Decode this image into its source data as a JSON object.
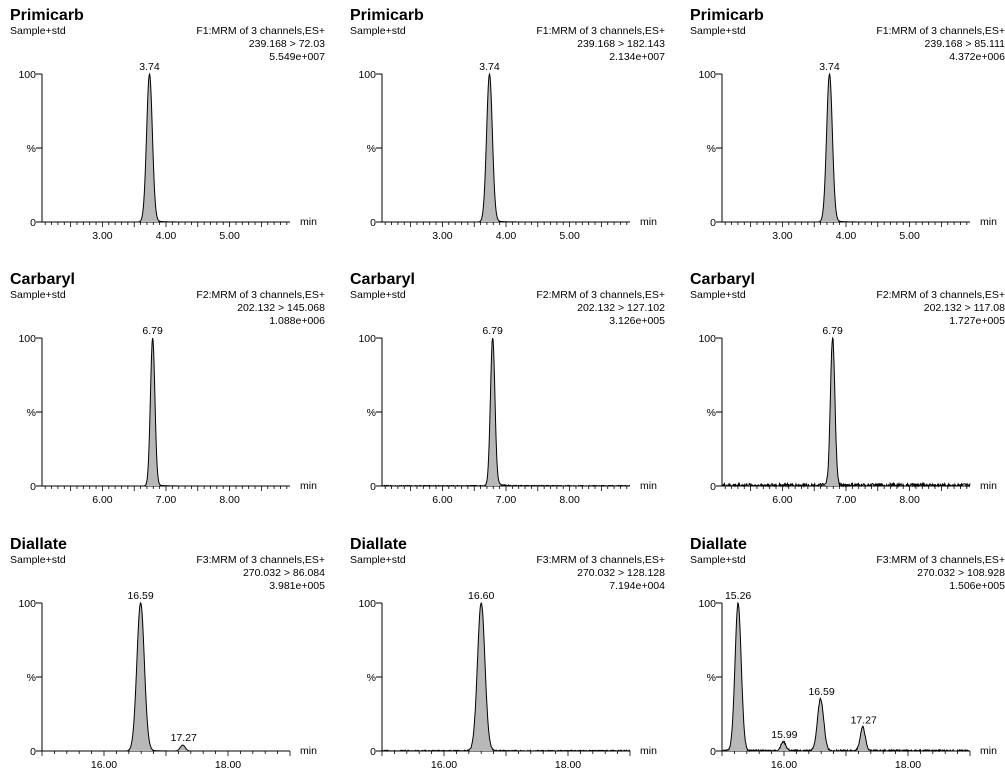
{
  "chart_data": [
    {
      "type": "line",
      "title": "Primicarb",
      "subtitle": "Sample+std",
      "function": "F1:MRM of 3 channels,ES+",
      "transition": "239.168 > 72.03",
      "intensity": "5.549e+007",
      "xlabel": "min",
      "xlim": [
        2.05,
        5.95
      ],
      "ylim": [
        0,
        100
      ],
      "x_ticks": [
        "3.00",
        "4.00",
        "5.00"
      ],
      "y_ticks": [
        "0",
        "%",
        "100"
      ],
      "peaks": [
        {
          "label": "3.74",
          "rt": 3.74,
          "height": 100,
          "width": 0.045
        }
      ],
      "tail": 1.5,
      "noise": 0
    },
    {
      "type": "line",
      "title": "Primicarb",
      "subtitle": "Sample+std",
      "function": "F1:MRM of 3 channels,ES+",
      "transition": "239.168 > 182.143",
      "intensity": "2.134e+007",
      "xlabel": "min",
      "xlim": [
        2.05,
        5.95
      ],
      "ylim": [
        0,
        100
      ],
      "x_ticks": [
        "3.00",
        "4.00",
        "5.00"
      ],
      "y_ticks": [
        "0",
        "%",
        "100"
      ],
      "peaks": [
        {
          "label": "3.74",
          "rt": 3.74,
          "height": 100,
          "width": 0.045
        }
      ],
      "tail": 1.5,
      "noise": 0
    },
    {
      "type": "line",
      "title": "Primicarb",
      "subtitle": "Sample+std",
      "function": "F1:MRM of 3 channels,ES+",
      "transition": "239.168 > 85.111",
      "intensity": "4.372e+006",
      "xlabel": "min",
      "xlim": [
        2.05,
        5.95
      ],
      "ylim": [
        0,
        100
      ],
      "x_ticks": [
        "3.00",
        "4.00",
        "5.00"
      ],
      "y_ticks": [
        "0",
        "%",
        "100"
      ],
      "peaks": [
        {
          "label": "3.74",
          "rt": 3.74,
          "height": 100,
          "width": 0.045
        }
      ],
      "tail": 1.5,
      "noise": 0
    },
    {
      "type": "line",
      "title": "Carbaryl",
      "subtitle": "Sample+std",
      "function": "F2:MRM of 3 channels,ES+",
      "transition": "202.132 > 145.068",
      "intensity": "1.088e+006",
      "xlabel": "min",
      "xlim": [
        5.05,
        8.95
      ],
      "ylim": [
        0,
        100
      ],
      "x_ticks": [
        "6.00",
        "7.00",
        "8.00"
      ],
      "y_ticks": [
        "0",
        "%",
        "100"
      ],
      "peaks": [
        {
          "label": "6.79",
          "rt": 6.79,
          "height": 100,
          "width": 0.035
        }
      ],
      "tail": 1.2,
      "noise": 0
    },
    {
      "type": "line",
      "title": "Carbaryl",
      "subtitle": "Sample+std",
      "function": "F2:MRM of 3 channels,ES+",
      "transition": "202.132 > 127.102",
      "intensity": "3.126e+005",
      "xlabel": "min",
      "xlim": [
        5.05,
        8.95
      ],
      "ylim": [
        0,
        100
      ],
      "x_ticks": [
        "6.00",
        "7.00",
        "8.00"
      ],
      "y_ticks": [
        "0",
        "%",
        "100"
      ],
      "peaks": [
        {
          "label": "6.79",
          "rt": 6.79,
          "height": 100,
          "width": 0.035
        }
      ],
      "tail": 2.5,
      "noise": 0.6
    },
    {
      "type": "line",
      "title": "Carbaryl",
      "subtitle": "Sample+std",
      "function": "F2:MRM of 3 channels,ES+",
      "transition": "202.132 > 117.08",
      "intensity": "1.727e+005",
      "xlabel": "min",
      "xlim": [
        5.05,
        8.95
      ],
      "ylim": [
        0,
        100
      ],
      "x_ticks": [
        "6.00",
        "7.00",
        "8.00"
      ],
      "y_ticks": [
        "0",
        "%",
        "100"
      ],
      "peaks": [
        {
          "label": "6.79",
          "rt": 6.79,
          "height": 100,
          "width": 0.035
        }
      ],
      "tail": 0,
      "noise": 2.5
    },
    {
      "type": "line",
      "title": "Diallate",
      "subtitle": "Sample+std",
      "function": "F3:MRM of 3 channels,ES+",
      "transition": "270.032 > 86.084",
      "intensity": "3.981e+005",
      "xlabel": "min",
      "xlim": [
        15.0,
        19.0
      ],
      "ylim": [
        0,
        100
      ],
      "x_ticks": [
        "16.00",
        "18.00"
      ],
      "y_ticks": [
        "0",
        "%",
        "100"
      ],
      "peaks": [
        {
          "label": "16.59",
          "rt": 16.59,
          "height": 100,
          "width": 0.06
        },
        {
          "label": "17.27",
          "rt": 17.27,
          "height": 4,
          "width": 0.04
        }
      ],
      "tail": 1.5,
      "noise": 0
    },
    {
      "type": "line",
      "title": "Diallate",
      "subtitle": "Sample+std",
      "function": "F3:MRM of 3 channels,ES+",
      "transition": "270.032 > 128.128",
      "intensity": "7.194e+004",
      "xlabel": "min",
      "xlim": [
        15.0,
        19.0
      ],
      "ylim": [
        0,
        100
      ],
      "x_ticks": [
        "16.00",
        "18.00"
      ],
      "y_ticks": [
        "0",
        "%",
        "100"
      ],
      "peaks": [
        {
          "label": "16.60",
          "rt": 16.6,
          "height": 100,
          "width": 0.06
        }
      ],
      "tail": 1,
      "noise": 0.8
    },
    {
      "type": "line",
      "title": "Diallate",
      "subtitle": "Sample+std",
      "function": "F3:MRM of 3 channels,ES+",
      "transition": "270.032 > 108.928",
      "intensity": "1.506e+005",
      "xlabel": "min",
      "xlim": [
        15.0,
        19.0
      ],
      "ylim": [
        0,
        100
      ],
      "x_ticks": [
        "16.00",
        "18.00"
      ],
      "y_ticks": [
        "0",
        "%",
        "100"
      ],
      "peaks": [
        {
          "label": "15.26",
          "rt": 15.26,
          "height": 100,
          "width": 0.05
        },
        {
          "label": "15.99",
          "rt": 15.99,
          "height": 6,
          "width": 0.04
        },
        {
          "label": "16.59",
          "rt": 16.59,
          "height": 35,
          "width": 0.05
        },
        {
          "label": "17.27",
          "rt": 17.27,
          "height": 16,
          "width": 0.04
        }
      ],
      "tail": 0,
      "noise": 1.2
    }
  ]
}
